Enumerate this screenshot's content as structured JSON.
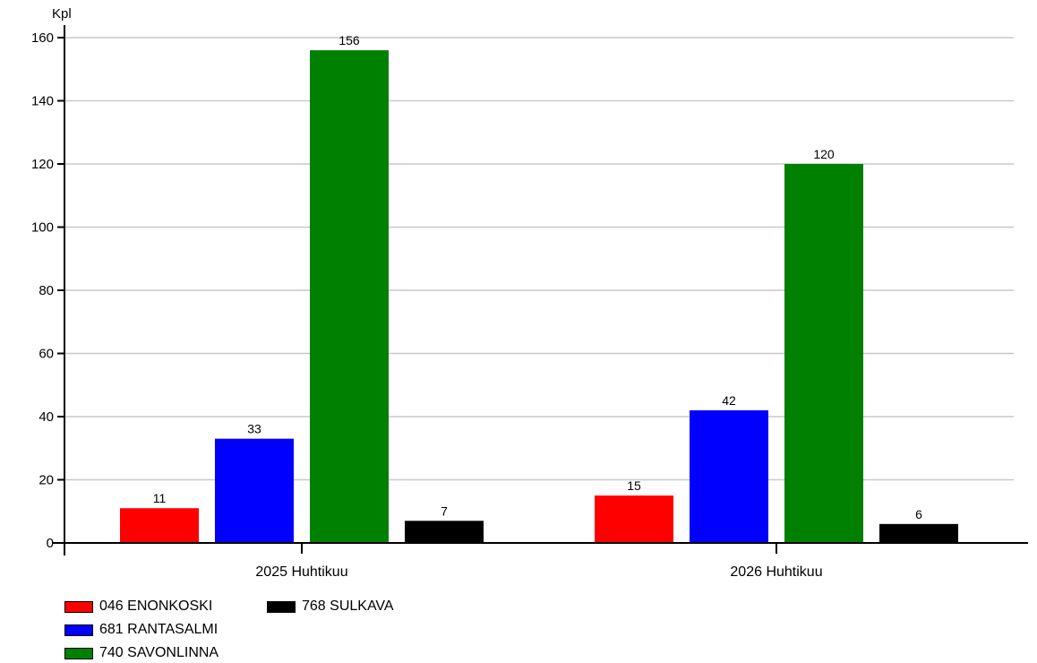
{
  "chart_data": {
    "type": "bar",
    "ylabel": "Kpl",
    "xlabel": "",
    "categories": [
      "2025 Huhtikuu",
      "2026 Huhtikuu"
    ],
    "ylim": [
      0,
      160
    ],
    "yticks": [
      "0",
      "20",
      "40",
      "60",
      "80",
      "100",
      "120",
      "140",
      "160"
    ],
    "grid": true,
    "legend_position": "bottom-left",
    "series": [
      {
        "name": "046 ENONKOSKI",
        "color": "#ff0000",
        "values": [
          11,
          15
        ]
      },
      {
        "name": "681 RANTASALMI",
        "color": "#0000ff",
        "values": [
          33,
          42
        ]
      },
      {
        "name": "740 SAVONLINNA",
        "color": "#008000",
        "values": [
          156,
          120
        ]
      },
      {
        "name": "768 SULKAVA",
        "color": "#000000",
        "values": [
          7,
          6
        ]
      }
    ]
  }
}
